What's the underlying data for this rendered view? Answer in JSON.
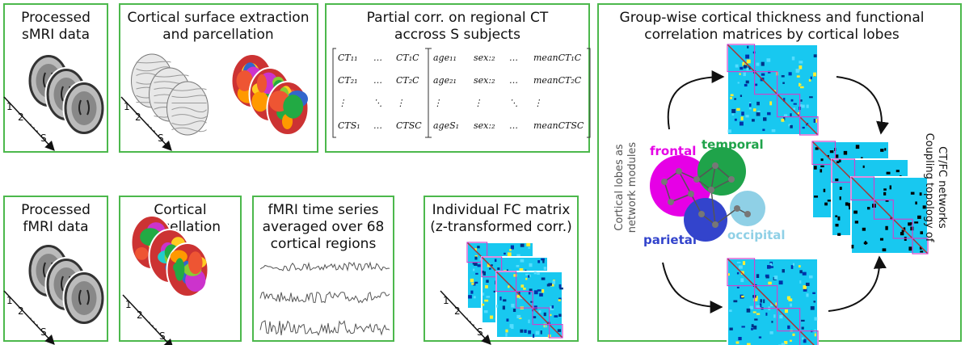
{
  "panels": [
    {
      "title": [
        "Processed",
        "sMRI data"
      ],
      "stack": [
        "1",
        "2",
        "⋱",
        "S"
      ]
    },
    {
      "title": [
        "Cortical surface extraction",
        "and parcellation"
      ],
      "stack": [
        "1",
        "2",
        "⋱",
        "S"
      ]
    },
    {
      "title": [
        "Partial corr. on regional CT",
        "accross S subjects"
      ]
    },
    {
      "title": [
        "Processed",
        "fMRI data"
      ],
      "stack": [
        "1",
        "2",
        "⋱",
        "S"
      ]
    },
    {
      "title": [
        "Cortical",
        "parcellation"
      ],
      "stack": [
        "1",
        "2",
        "⋱",
        "S"
      ]
    },
    {
      "title": [
        "fMRI time series",
        "averaged over 68",
        "cortical regions"
      ]
    },
    {
      "title": [
        "Individual FC matrix",
        "(z-transformed corr.)"
      ],
      "stack": [
        "1",
        "2",
        "⋱",
        "S"
      ]
    },
    {
      "title": [
        "Group-wise cortical thickness and functional",
        "correlation matrices by cortical lobes"
      ]
    }
  ],
  "ct_matrix": [
    [
      "CT₁₁",
      "…",
      "CT₁C"
    ],
    [
      "CT₂₁",
      "…",
      "CT₂C"
    ],
    [
      "⋮",
      "⋱",
      "⋮"
    ],
    [
      "CTS₁",
      "…",
      "CTSC"
    ]
  ],
  "cov_matrix": [
    [
      "age₁₁",
      "sex:₂",
      "…",
      "meanCT₁C"
    ],
    [
      "age₂₁",
      "sex:₂",
      "…",
      "meanCT₂C"
    ],
    [
      "⋮",
      "⋮",
      "⋱",
      "⋮"
    ],
    [
      "ageS₁",
      "sex:₂",
      "…",
      "meanCTSC"
    ]
  ],
  "lobes_caption": [
    "Cortical lobes as",
    "network modules"
  ],
  "coupling_caption": [
    "Coupling topology of",
    "CT/FC networks"
  ],
  "lobes": [
    {
      "name": "frontal",
      "color": "#e600e6"
    },
    {
      "name": "temporal",
      "color": "#1fa34a"
    },
    {
      "name": "parietal",
      "color": "#3344cc"
    },
    {
      "name": "occipital",
      "color": "#8fd0e6"
    }
  ]
}
